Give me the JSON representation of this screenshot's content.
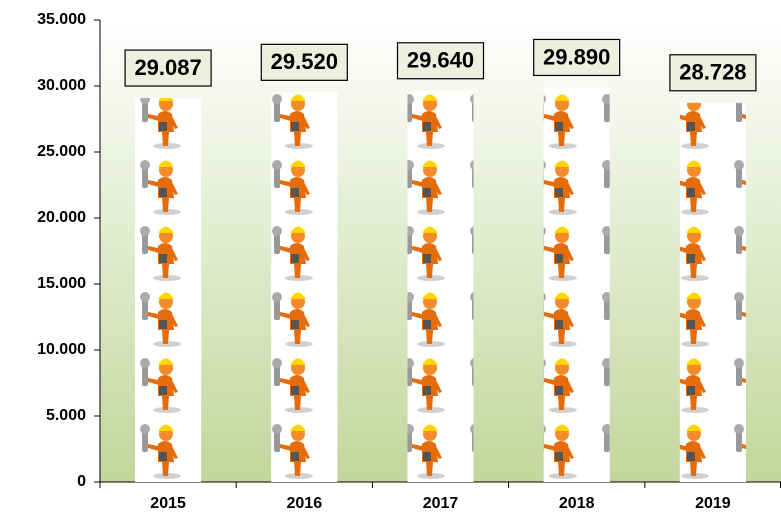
{
  "chart_data": {
    "type": "bar",
    "categories": [
      "2015",
      "2016",
      "2017",
      "2018",
      "2019"
    ],
    "values": [
      29087,
      29520,
      29640,
      29890,
      28728
    ],
    "value_labels": [
      "29.087",
      "29.520",
      "29.640",
      "29.890",
      "28.728"
    ],
    "color": "#ffffff",
    "ylim": [
      0,
      35000
    ],
    "yticks": [
      0,
      {
        "value": 5000,
        "label": "5.000"
      },
      {
        "value": 10000,
        "label": "10.000"
      },
      {
        "value": 15000,
        "label": "15.000"
      },
      {
        "value": 20000,
        "label": "20.000"
      },
      {
        "value": 25000,
        "label": "25.000"
      },
      {
        "value": 30000,
        "label": "30.000"
      },
      {
        "value": 35000,
        "label": "35.000"
      }
    ],
    "grid": false
  }
}
